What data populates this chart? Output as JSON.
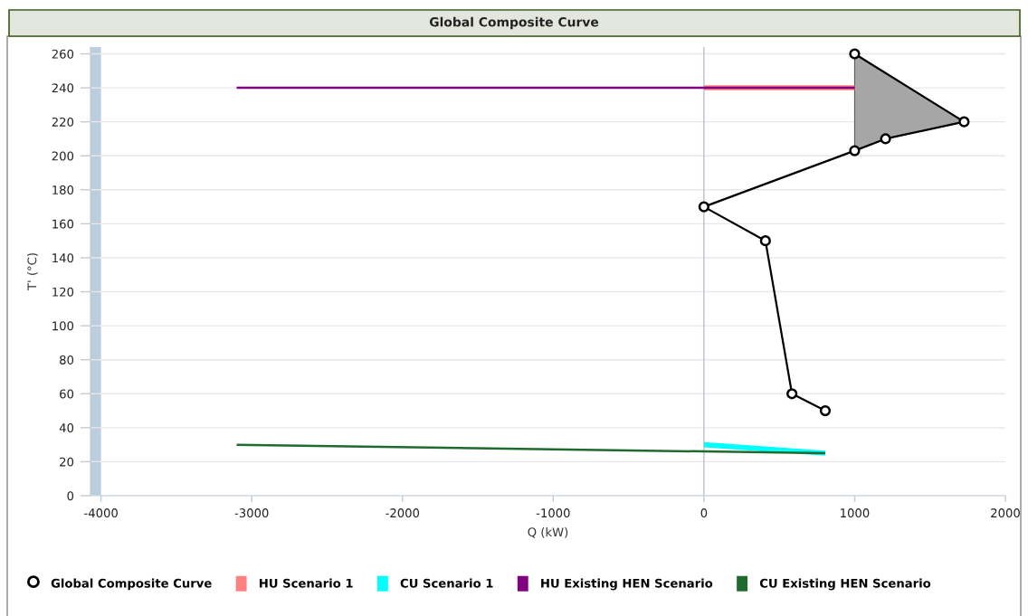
{
  "chart_data": {
    "type": "line",
    "title": "Global Composite Curve",
    "xlabel": "Q (kW)",
    "ylabel": "T' (°C)",
    "xlim": [
      -4070,
      2000
    ],
    "xticks": [
      -4000,
      -3000,
      -2000,
      -1000,
      0,
      1000,
      2000
    ],
    "ylim": [
      0,
      264
    ],
    "yticks": [
      0,
      20,
      40,
      60,
      80,
      100,
      120,
      140,
      160,
      180,
      200,
      220,
      240,
      260
    ],
    "grid": "y",
    "legend": "bottom",
    "ref_lines": [
      {
        "axis": "x",
        "value": 0,
        "color": "#b4c2d0"
      }
    ],
    "bands": [
      {
        "axis": "x",
        "from": -4070,
        "to": -4000,
        "color": "#bccddd"
      }
    ],
    "series": [
      {
        "name": "Global Composite Curve",
        "color": "#000000",
        "marker": "circle",
        "x": [
          1000,
          1726,
          1205,
          1000,
          0,
          408,
          584,
          805
        ],
        "values": [
          260,
          220,
          210,
          203,
          170,
          150,
          60,
          50
        ]
      },
      {
        "name": "HU Scenario 1",
        "color": "#ff8080",
        "x": [
          0,
          1000
        ],
        "values": [
          240,
          240
        ]
      },
      {
        "name": "CU Scenario 1",
        "color": "#00ffff",
        "x": [
          0,
          805
        ],
        "values": [
          30,
          25
        ]
      },
      {
        "name": "HU Existing HEN Scenario",
        "color": "#800080",
        "x": [
          -3100,
          1000
        ],
        "values": [
          240,
          240
        ]
      },
      {
        "name": "CU Existing HEN Scenario",
        "color": "#1f6b2f",
        "x": [
          -3100,
          805
        ],
        "values": [
          30,
          25
        ]
      },
      {
        "type": "area",
        "color": "#a6a6a6",
        "x": [
          1000,
          1726,
          1205,
          1000
        ],
        "values": [
          260,
          220,
          210,
          203
        ]
      }
    ]
  }
}
